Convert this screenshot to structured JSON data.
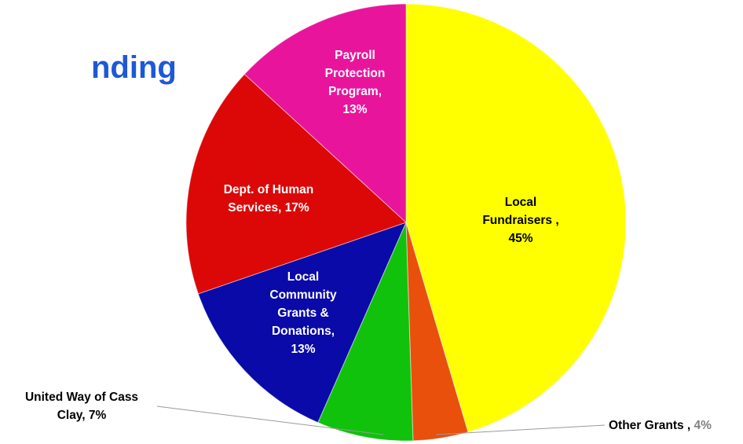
{
  "title": "nding",
  "chart_data": {
    "type": "pie",
    "title": "nding",
    "slices": [
      {
        "label": "Local Fundraisers ,",
        "value": 45,
        "value_text": "45%",
        "color": "#ffff00",
        "text_color": "#000000"
      },
      {
        "label": "Other Grants ,",
        "value": 4,
        "value_text": "4%",
        "color": "#e8500c",
        "text_color": "#000000"
      },
      {
        "label": "United Way of Cass Clay,",
        "value": 7,
        "value_text": "7%",
        "color": "#10c20b",
        "text_color": "#000000"
      },
      {
        "label": "Local Community Grants & Donations,",
        "value": 13,
        "value_text": "13%",
        "color": "#0a0aa8",
        "text_color": "#ffffff"
      },
      {
        "label": "Dept. of Human Services,",
        "value": 17,
        "value_text": "17%",
        "color": "#dc0808",
        "text_color": "#ffffff"
      },
      {
        "label": "Payroll Protection Program,",
        "value": 13,
        "value_text": "13%",
        "color": "#e8159c",
        "text_color": "#ffffff"
      }
    ]
  }
}
